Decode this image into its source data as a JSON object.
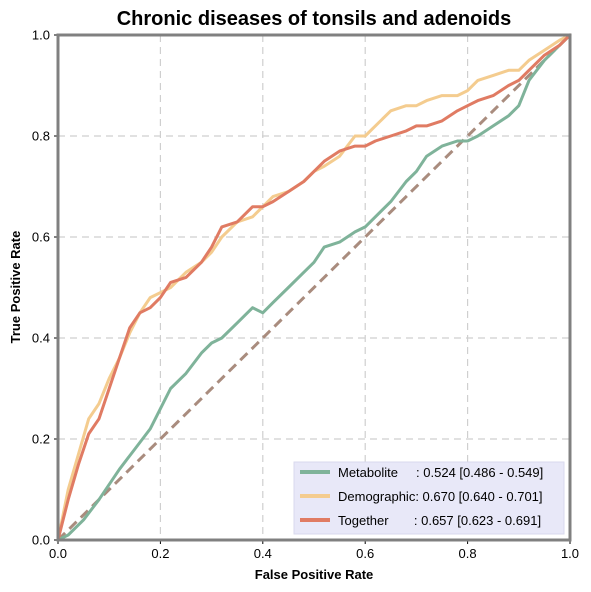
{
  "chart_data": {
    "type": "line",
    "title": "Chronic diseases of tonsils and adenoids",
    "xlabel": "False Positive Rate",
    "ylabel": "True Positive Rate",
    "xlim": [
      0,
      1
    ],
    "ylim": [
      0,
      1
    ],
    "x_ticks": [
      "0.0",
      "0.2",
      "0.4",
      "0.6",
      "0.8",
      "1.0"
    ],
    "y_ticks": [
      "0.0",
      "0.2",
      "0.4",
      "0.6",
      "0.8",
      "1.0"
    ],
    "grid": true,
    "legend_position": "bottom-right",
    "diagonal": {
      "x": [
        0,
        1
      ],
      "y": [
        0,
        1
      ],
      "color": "#a98c7e"
    },
    "series": [
      {
        "name": "Metabolite",
        "legend_label": "Metabolite     : 0.524 [0.486 - 0.549]",
        "color": "#7fb39a",
        "x": [
          0,
          0.02,
          0.05,
          0.08,
          0.1,
          0.12,
          0.15,
          0.18,
          0.2,
          0.22,
          0.25,
          0.28,
          0.3,
          0.32,
          0.35,
          0.38,
          0.4,
          0.42,
          0.45,
          0.48,
          0.5,
          0.52,
          0.55,
          0.58,
          0.6,
          0.62,
          0.65,
          0.68,
          0.7,
          0.72,
          0.75,
          0.78,
          0.8,
          0.82,
          0.85,
          0.88,
          0.9,
          0.92,
          0.95,
          0.98,
          1.0
        ],
        "y": [
          0,
          0.01,
          0.04,
          0.08,
          0.11,
          0.14,
          0.18,
          0.22,
          0.26,
          0.3,
          0.33,
          0.37,
          0.39,
          0.4,
          0.43,
          0.46,
          0.45,
          0.47,
          0.5,
          0.53,
          0.55,
          0.58,
          0.59,
          0.61,
          0.62,
          0.64,
          0.67,
          0.71,
          0.73,
          0.76,
          0.78,
          0.79,
          0.79,
          0.8,
          0.82,
          0.84,
          0.86,
          0.91,
          0.95,
          0.98,
          1.0
        ]
      },
      {
        "name": "Demographic",
        "legend_label": "Demographic: 0.670 [0.640 - 0.701]",
        "color": "#f4cc8f",
        "x": [
          0,
          0.02,
          0.04,
          0.06,
          0.08,
          0.1,
          0.12,
          0.14,
          0.16,
          0.18,
          0.2,
          0.22,
          0.25,
          0.28,
          0.3,
          0.32,
          0.35,
          0.38,
          0.4,
          0.42,
          0.45,
          0.48,
          0.5,
          0.52,
          0.55,
          0.58,
          0.6,
          0.62,
          0.65,
          0.68,
          0.7,
          0.72,
          0.75,
          0.78,
          0.8,
          0.82,
          0.85,
          0.88,
          0.9,
          0.92,
          0.95,
          0.98,
          1.0
        ],
        "y": [
          0,
          0.1,
          0.17,
          0.24,
          0.27,
          0.32,
          0.36,
          0.41,
          0.45,
          0.48,
          0.49,
          0.5,
          0.53,
          0.55,
          0.57,
          0.6,
          0.63,
          0.64,
          0.66,
          0.68,
          0.69,
          0.71,
          0.73,
          0.74,
          0.76,
          0.8,
          0.8,
          0.82,
          0.85,
          0.86,
          0.86,
          0.87,
          0.88,
          0.88,
          0.89,
          0.91,
          0.92,
          0.93,
          0.93,
          0.95,
          0.97,
          0.99,
          1.0
        ]
      },
      {
        "name": "Together",
        "legend_label": "Together       : 0.657 [0.623 - 0.691]",
        "color": "#e07b63",
        "x": [
          0,
          0.02,
          0.04,
          0.06,
          0.08,
          0.1,
          0.12,
          0.14,
          0.16,
          0.18,
          0.2,
          0.22,
          0.25,
          0.28,
          0.3,
          0.32,
          0.35,
          0.38,
          0.4,
          0.42,
          0.45,
          0.48,
          0.5,
          0.52,
          0.55,
          0.58,
          0.6,
          0.62,
          0.65,
          0.68,
          0.7,
          0.72,
          0.75,
          0.78,
          0.8,
          0.82,
          0.85,
          0.88,
          0.9,
          0.92,
          0.95,
          0.98,
          1.0
        ],
        "y": [
          0,
          0.08,
          0.15,
          0.21,
          0.24,
          0.3,
          0.36,
          0.42,
          0.45,
          0.46,
          0.48,
          0.51,
          0.52,
          0.55,
          0.58,
          0.62,
          0.63,
          0.66,
          0.66,
          0.67,
          0.69,
          0.71,
          0.73,
          0.75,
          0.77,
          0.78,
          0.78,
          0.79,
          0.8,
          0.81,
          0.82,
          0.82,
          0.83,
          0.85,
          0.86,
          0.87,
          0.88,
          0.9,
          0.91,
          0.93,
          0.96,
          0.98,
          1.0
        ]
      }
    ]
  }
}
